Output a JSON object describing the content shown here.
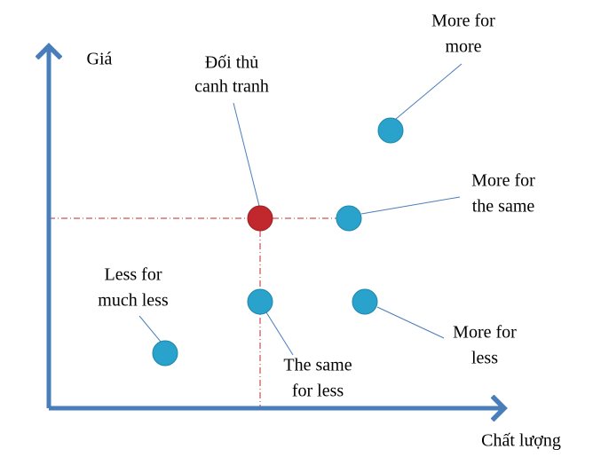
{
  "axes": {
    "y_label": "Giá",
    "x_label": "Chất lượng"
  },
  "nodes": [
    {
      "label": [
        "Đối thủ",
        "canh tranh"
      ]
    },
    {
      "label": [
        "More for",
        "more"
      ]
    },
    {
      "label": [
        "More for",
        "the same"
      ]
    },
    {
      "label": [
        "Less for",
        "much less"
      ]
    },
    {
      "label": [
        "The same",
        "for less"
      ]
    },
    {
      "label": [
        "More for",
        "less"
      ]
    }
  ]
}
